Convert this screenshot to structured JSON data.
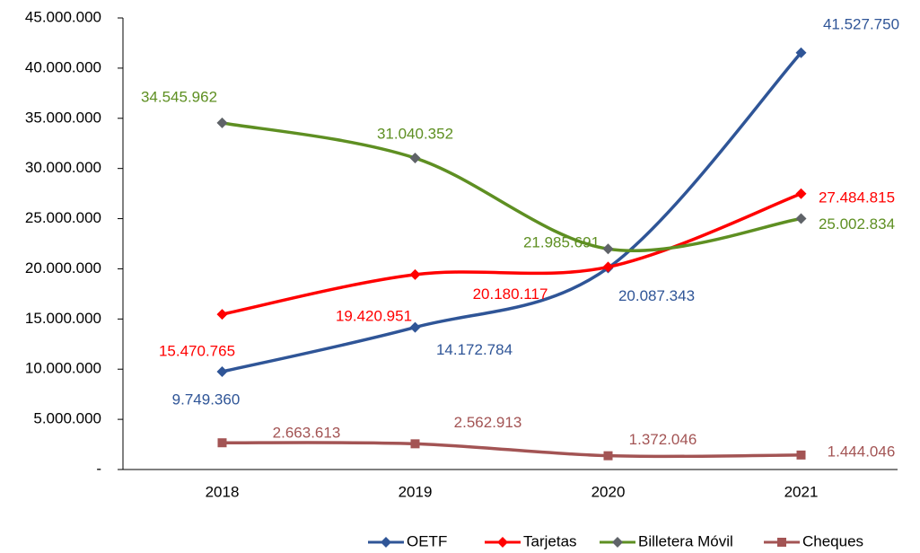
{
  "chart_data": {
    "type": "line",
    "categories": [
      "2018",
      "2019",
      "2020",
      "2021"
    ],
    "series": [
      {
        "name": "OETF",
        "color": "#2f5597",
        "marker": "diamond",
        "values": [
          9749360,
          14172784,
          20087343,
          41527750
        ],
        "value_labels": [
          "9.749.360",
          "14.172.784",
          "20.087.343",
          "41.527.750"
        ]
      },
      {
        "name": "Tarjetas",
        "color": "#ff0000",
        "marker": "diamond",
        "values": [
          15470765,
          19420951,
          20180117,
          27484815
        ],
        "value_labels": [
          "15.470.765",
          "19.420.951",
          "20.180.117",
          "27.484.815"
        ]
      },
      {
        "name": "Billetera Móvil",
        "color": "#5e8f22",
        "marker_color": "#5f6368",
        "marker": "diamond",
        "values": [
          34545962,
          31040352,
          21985691,
          25002834
        ],
        "value_labels": [
          "34.545.962",
          "31.040.352",
          "21.985.691",
          "25.002.834"
        ]
      },
      {
        "name": "Cheques",
        "color": "#a35454",
        "marker": "square",
        "values": [
          2663613,
          2562913,
          1372046,
          1444046
        ],
        "value_labels": [
          "2.663.613",
          "2.562.913",
          "1.372.046",
          "1.444.046"
        ]
      }
    ],
    "ylim": [
      0,
      45000000
    ],
    "yticks": [
      {
        "value": 0,
        "label": "-"
      },
      {
        "value": 5000000,
        "label": "5.000.000"
      },
      {
        "value": 10000000,
        "label": "10.000.000"
      },
      {
        "value": 15000000,
        "label": "15.000.000"
      },
      {
        "value": 20000000,
        "label": "20.000.000"
      },
      {
        "value": 25000000,
        "label": "25.000.000"
      },
      {
        "value": 30000000,
        "label": "30.000.000"
      },
      {
        "value": 35000000,
        "label": "35.000.000"
      },
      {
        "value": 40000000,
        "label": "40.000.000"
      },
      {
        "value": 45000000,
        "label": "45.000.000"
      }
    ],
    "grid": false,
    "smooth": true,
    "legend": "bottom-right"
  }
}
